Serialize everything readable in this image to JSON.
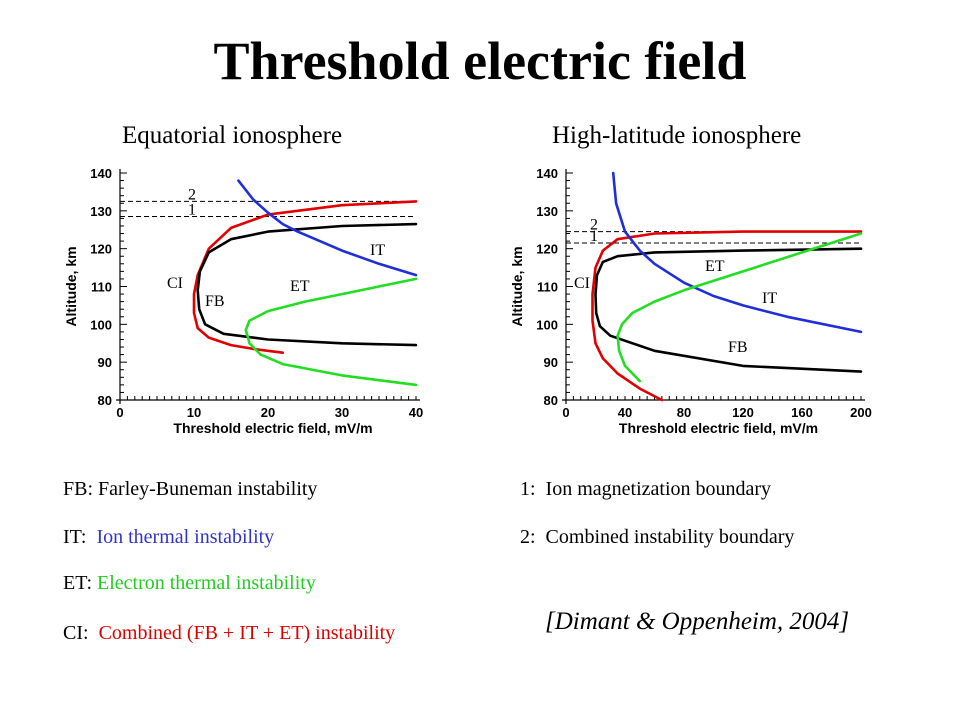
{
  "page": {
    "title": "Threshold electric field"
  },
  "chart_data": [
    {
      "type": "line",
      "title": "Equatorial ionosphere",
      "xlabel": "Threshold electric field, mV/m",
      "ylabel": "Altitude, km",
      "xlim": [
        0,
        40
      ],
      "ylim": [
        80,
        140
      ],
      "xticks": [
        0,
        10,
        20,
        30,
        40
      ],
      "yticks": [
        80,
        90,
        100,
        110,
        120,
        130,
        140
      ],
      "boundaries": [
        {
          "label": "1",
          "y": 128.5
        },
        {
          "label": "2",
          "y": 132.5
        }
      ],
      "series": [
        {
          "name": "CI",
          "color": "#e00000",
          "x": [
            40,
            30,
            20,
            15,
            12,
            10.5,
            10,
            10,
            10.5,
            12,
            15,
            18,
            22
          ],
          "y": [
            132.5,
            131.5,
            129,
            125.5,
            120,
            113,
            108,
            103,
            99,
            96.5,
            94.5,
            93.5,
            92.5
          ]
        },
        {
          "name": "FB",
          "color": "#000000",
          "x": [
            40,
            30,
            20,
            15,
            12,
            10.8,
            10.5,
            10.7,
            11.5,
            14,
            20,
            30,
            40
          ],
          "y": [
            126.5,
            126,
            124.5,
            122.5,
            119,
            114,
            109,
            104,
            100,
            97.5,
            96,
            95,
            94.5
          ]
        },
        {
          "name": "IT",
          "color": "#1f2ed8",
          "x": [
            16,
            18,
            20,
            22,
            24,
            27,
            30,
            35,
            40
          ],
          "y": [
            138,
            133,
            129.5,
            126.5,
            124.5,
            122,
            119.5,
            116,
            113
          ]
        },
        {
          "name": "ET",
          "color": "#22dd22",
          "x": [
            40,
            35,
            30,
            25,
            20,
            17.5,
            17,
            17.5,
            19,
            22,
            30,
            40
          ],
          "y": [
            112,
            110,
            108,
            106,
            103.5,
            101,
            98.5,
            95,
            92,
            89.5,
            86.5,
            84
          ]
        }
      ]
    },
    {
      "type": "line",
      "title": "High-latitude ionosphere",
      "xlabel": "Threshold electric field, mV/m",
      "ylabel": "Altitude, km",
      "xlim": [
        0,
        200
      ],
      "ylim": [
        80,
        140
      ],
      "xticks": [
        0,
        40,
        80,
        120,
        160,
        200
      ],
      "yticks": [
        80,
        90,
        100,
        110,
        120,
        130,
        140
      ],
      "boundaries": [
        {
          "label": "1",
          "y": 121.5
        },
        {
          "label": "2",
          "y": 124.5
        }
      ],
      "series": [
        {
          "name": "CI",
          "color": "#e00000",
          "x": [
            200,
            120,
            60,
            35,
            25,
            20,
            18,
            18,
            20,
            25,
            35,
            50,
            65
          ],
          "y": [
            124.5,
            124.5,
            124,
            122.5,
            119.5,
            115,
            108,
            101,
            95,
            91,
            87,
            83,
            80
          ]
        },
        {
          "name": "FB",
          "color": "#000000",
          "x": [
            200,
            120,
            60,
            35,
            25,
            21,
            20,
            20.5,
            23,
            30,
            60,
            120,
            200
          ],
          "y": [
            120,
            119.5,
            119,
            118,
            116.5,
            113,
            108,
            103,
            99.5,
            97,
            93,
            89,
            87.5
          ]
        },
        {
          "name": "IT",
          "color": "#1f2ed8",
          "x": [
            32,
            34,
            40,
            50,
            60,
            80,
            100,
            120,
            150,
            200
          ],
          "y": [
            140,
            132,
            124.5,
            119.5,
            116,
            111,
            107.5,
            105,
            102,
            98
          ]
        },
        {
          "name": "ET",
          "color": "#22dd22",
          "x": [
            200,
            160,
            120,
            80,
            60,
            45,
            38,
            35,
            36,
            40,
            50
          ],
          "y": [
            124,
            119,
            114,
            109,
            106,
            103,
            100,
            97,
            93,
            89,
            85
          ]
        }
      ]
    }
  ],
  "legend": {
    "left": [
      {
        "prefix": "FB:",
        "text": " Farley-Buneman instability",
        "color": "#000000"
      },
      {
        "prefix": "IT:",
        "text": "  Ion thermal instability",
        "color": "#3333cc"
      },
      {
        "prefix": "ET:",
        "text": " Electron thermal instability",
        "color": "#22cc22"
      },
      {
        "prefix": "CI:",
        "text": "  Combined (FB + IT + ET) instability",
        "color": "#dd0000"
      }
    ],
    "right": [
      {
        "text": "1:  Ion magnetization boundary"
      },
      {
        "text": "2:  Combined instability boundary"
      }
    ]
  },
  "citation": "[Dimant & Oppenheim, 2004]"
}
